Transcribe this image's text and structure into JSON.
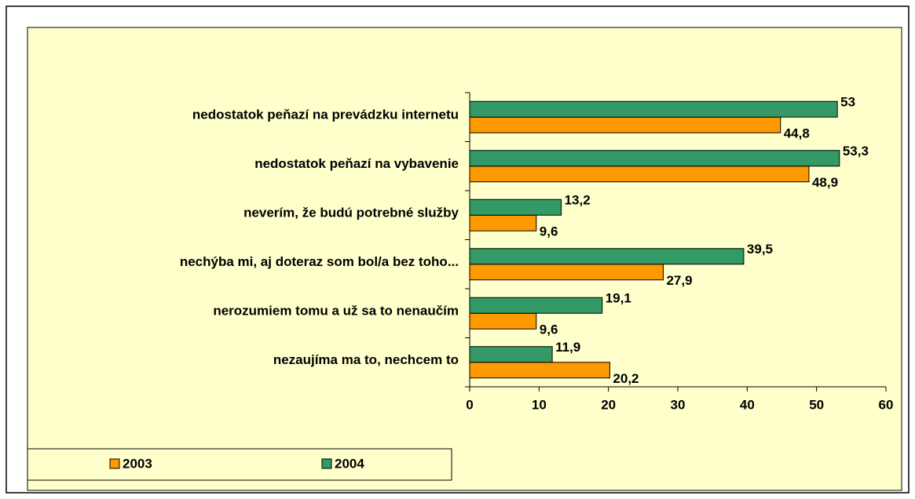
{
  "chart_data": {
    "type": "barh",
    "categories": [
      "nedostatok peňazí na prevádzku internetu",
      "nedostatok peňazí na vybavenie",
      "neverím, že budú potrebné služby",
      "nechýba mi, aj doteraz som bol/a bez toho...",
      "nerozumiem tomu a už sa to nenaučím",
      "nezaujíma ma to, nechcem to"
    ],
    "series": [
      {
        "name": "2003",
        "color": "#ff9900",
        "values": [
          44.8,
          48.9,
          9.6,
          27.9,
          9.6,
          20.2
        ],
        "value_labels": [
          "44,8",
          "48,9",
          "9,6",
          "27,9",
          "9,6",
          "20,2"
        ]
      },
      {
        "name": "2004",
        "color": "#339966",
        "values": [
          53,
          53.3,
          13.2,
          39.5,
          19.1,
          11.9
        ],
        "value_labels": [
          "53",
          "53,3",
          "13,2",
          "39,5",
          "19,1",
          "11,9"
        ]
      }
    ],
    "xlim": [
      0,
      60
    ],
    "xticks": [
      0,
      10,
      20,
      30,
      40,
      50,
      60
    ],
    "grid": false,
    "legend": "bottom-left"
  }
}
